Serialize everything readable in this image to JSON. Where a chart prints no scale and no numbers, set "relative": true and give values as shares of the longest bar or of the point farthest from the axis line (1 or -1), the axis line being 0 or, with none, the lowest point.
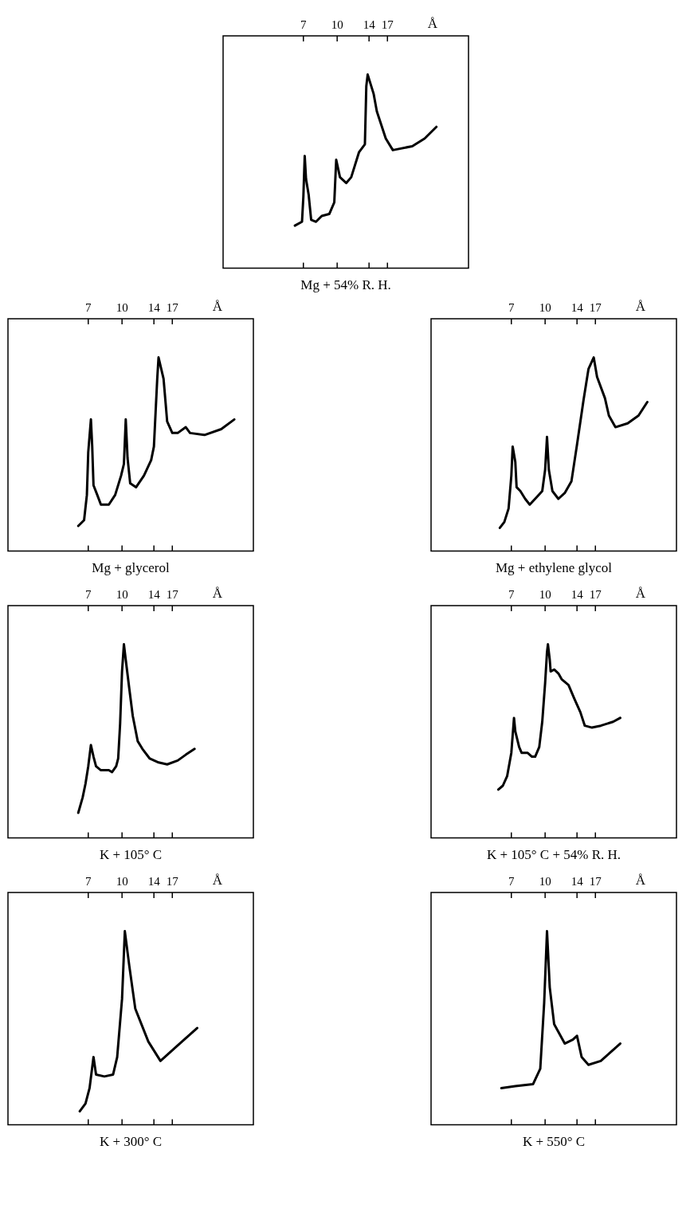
{
  "chart_data": [
    {
      "type": "line",
      "title": "Mg + 54% R. H.",
      "xlabel": "Å",
      "relative": true,
      "log": "x",
      "tick_labels": "x",
      "marker": "none",
      "color": "#000000",
      "xlim": [
        3,
        40
      ],
      "xticks": [
        7,
        10,
        14,
        17
      ],
      "x": [
        6.4,
        6.9,
        7.0,
        7.1,
        7.2,
        7.4,
        7.6,
        8.0,
        8.5,
        9.2,
        9.7,
        9.9,
        10.3,
        11.0,
        11.6,
        12.6,
        13.4,
        13.6,
        13.8,
        14.7,
        15.2,
        16.7,
        18.0,
        22.1,
        25.2,
        28.5
      ],
      "values": [
        0.22,
        0.24,
        0.37,
        0.58,
        0.46,
        0.38,
        0.25,
        0.24,
        0.27,
        0.28,
        0.34,
        0.56,
        0.47,
        0.44,
        0.47,
        0.6,
        0.64,
        0.94,
        1,
        0.9,
        0.81,
        0.67,
        0.61,
        0.63,
        0.67,
        0.73
      ]
    },
    {
      "type": "line",
      "title": "Mg + glycerol",
      "xlabel": "Å",
      "relative": true,
      "log": "x",
      "tick_labels": "x",
      "marker": "none",
      "color": "#000000",
      "xlim": [
        3,
        40
      ],
      "xticks": [
        7,
        10,
        14,
        17
      ],
      "x": [
        6.3,
        6.7,
        6.9,
        7.0,
        7.2,
        7.3,
        7.4,
        7.7,
        8.0,
        8.4,
        8.7,
        9.3,
        9.9,
        10.2,
        10.4,
        10.6,
        10.9,
        11.6,
        12.6,
        13.6,
        14.0,
        14.5,
        14.7,
        15.5,
        16.1,
        17.0,
        18.0,
        19.6,
        20.5,
        23.9,
        28.5,
        32.7
      ],
      "values": [
        0.13,
        0.16,
        0.29,
        0.51,
        0.68,
        0.54,
        0.34,
        0.29,
        0.24,
        0.24,
        0.24,
        0.29,
        0.39,
        0.45,
        0.68,
        0.48,
        0.35,
        0.33,
        0.39,
        0.47,
        0.54,
        0.89,
        1,
        0.89,
        0.67,
        0.61,
        0.61,
        0.64,
        0.61,
        0.6,
        0.63,
        0.68
      ]
    },
    {
      "type": "line",
      "title": "Mg + ethylene glycol",
      "xlabel": "Å",
      "relative": true,
      "log": "x",
      "tick_labels": "x",
      "marker": "none",
      "color": "#000000",
      "xlim": [
        3,
        40
      ],
      "xticks": [
        7,
        10,
        14,
        17
      ],
      "x": [
        6.2,
        6.5,
        6.8,
        7.0,
        7.1,
        7.3,
        7.4,
        7.7,
        8.1,
        8.5,
        9.0,
        9.7,
        10.0,
        10.2,
        10.4,
        10.8,
        11.5,
        12.3,
        13.2,
        14.0,
        15.0,
        15.8,
        16.7,
        17.3,
        18.8,
        19.6,
        21.0,
        23.9,
        26.8,
        29.4
      ],
      "values": [
        0.12,
        0.15,
        0.22,
        0.39,
        0.54,
        0.46,
        0.33,
        0.31,
        0.27,
        0.24,
        0.27,
        0.31,
        0.42,
        0.59,
        0.42,
        0.31,
        0.27,
        0.3,
        0.36,
        0.55,
        0.78,
        0.94,
        1,
        0.9,
        0.79,
        0.7,
        0.64,
        0.66,
        0.7,
        0.77
      ]
    },
    {
      "type": "line",
      "title": "K + 105° C",
      "xlabel": "Å",
      "relative": true,
      "log": "x",
      "tick_labels": "x",
      "marker": "none",
      "color": "#000000",
      "xlim": [
        3,
        40
      ],
      "xticks": [
        7,
        10,
        14,
        17
      ],
      "x": [
        6.3,
        6.6,
        6.8,
        7.0,
        7.2,
        7.4,
        7.6,
        8.0,
        8.3,
        8.7,
        9.0,
        9.4,
        9.6,
        9.8,
        10.0,
        10.2,
        10.4,
        10.8,
        11.2,
        11.8,
        12.4,
        13.4,
        14.7,
        16.1,
        18.0,
        19.6,
        21.5
      ],
      "values": [
        0.13,
        0.21,
        0.28,
        0.37,
        0.48,
        0.42,
        0.37,
        0.35,
        0.35,
        0.35,
        0.34,
        0.37,
        0.41,
        0.59,
        0.86,
        1,
        0.92,
        0.77,
        0.63,
        0.5,
        0.46,
        0.41,
        0.39,
        0.38,
        0.4,
        0.43,
        0.46
      ]
    },
    {
      "type": "line",
      "title": "K + 105° C + 54% R. H.",
      "xlabel": "Å",
      "relative": true,
      "log": "x",
      "tick_labels": "x",
      "marker": "none",
      "color": "#000000",
      "xlim": [
        3,
        40
      ],
      "xticks": [
        7,
        10,
        14,
        17
      ],
      "x": [
        6.1,
        6.4,
        6.7,
        7.0,
        7.2,
        7.3,
        7.6,
        7.8,
        8.3,
        8.7,
        9.0,
        9.4,
        9.7,
        10.0,
        10.2,
        10.3,
        10.5,
        10.6,
        11.0,
        11.5,
        11.9,
        12.8,
        13.6,
        14.5,
        15.2,
        16.4,
        18.0,
        20.5,
        22.1
      ],
      "values": [
        0.25,
        0.27,
        0.32,
        0.44,
        0.62,
        0.55,
        0.47,
        0.44,
        0.44,
        0.42,
        0.42,
        0.47,
        0.6,
        0.8,
        0.96,
        1,
        0.92,
        0.86,
        0.87,
        0.85,
        0.82,
        0.79,
        0.72,
        0.65,
        0.58,
        0.57,
        0.58,
        0.6,
        0.62
      ]
    },
    {
      "type": "line",
      "title": "K + 300° C",
      "xlabel": "Å",
      "relative": true,
      "log": "x",
      "tick_labels": "x",
      "marker": "none",
      "color": "#000000",
      "xlim": [
        3,
        40
      ],
      "xticks": [
        7,
        10,
        14,
        17
      ],
      "x": [
        6.4,
        6.8,
        7.1,
        7.4,
        7.6,
        8.3,
        9.1,
        9.5,
        10.0,
        10.3,
        10.8,
        11.5,
        13.2,
        15.0,
        18.0,
        22.1
      ],
      "values": [
        0.07,
        0.11,
        0.19,
        0.35,
        0.26,
        0.25,
        0.26,
        0.35,
        0.65,
        1,
        0.82,
        0.6,
        0.43,
        0.33,
        0.41,
        0.5
      ]
    },
    {
      "type": "line",
      "title": "K + 550° C",
      "xlabel": "Å",
      "relative": true,
      "log": "x",
      "tick_labels": "x",
      "marker": "none",
      "color": "#000000",
      "xlim": [
        3,
        40
      ],
      "xticks": [
        7,
        10,
        14,
        17
      ],
      "x": [
        6.3,
        7.3,
        8.8,
        9.5,
        9.9,
        10.2,
        10.5,
        11.0,
        12.3,
        13.4,
        14.0,
        14.7,
        15.8,
        18.0,
        22.1
      ],
      "values": [
        0.19,
        0.2,
        0.21,
        0.29,
        0.63,
        1,
        0.71,
        0.52,
        0.42,
        0.44,
        0.46,
        0.35,
        0.31,
        0.33,
        0.42
      ]
    }
  ]
}
